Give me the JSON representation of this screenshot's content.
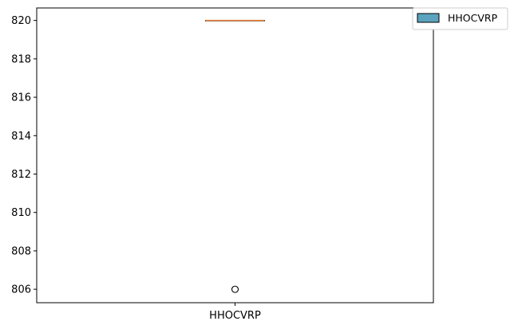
{
  "chart_data": {
    "type": "box",
    "categories": [
      "HHOCVRP"
    ],
    "series": [
      {
        "name": "HHOCVRP",
        "box": {
          "min": 820,
          "q1": 820,
          "median": 820,
          "q3": 820,
          "max": 820
        },
        "outliers": [
          806
        ]
      }
    ],
    "ylim": [
      805.3,
      820.65
    ],
    "yticks": [
      806,
      808,
      810,
      812,
      814,
      816,
      818,
      820
    ],
    "xlabel": "",
    "ylabel": "",
    "grid": false,
    "legend": {
      "position": "top-right",
      "entries": [
        "HHOCVRP"
      ]
    },
    "colors": {
      "box_fill": "#5ba3bf",
      "median": "#e8843c",
      "outlier_edge": "#000000"
    }
  }
}
